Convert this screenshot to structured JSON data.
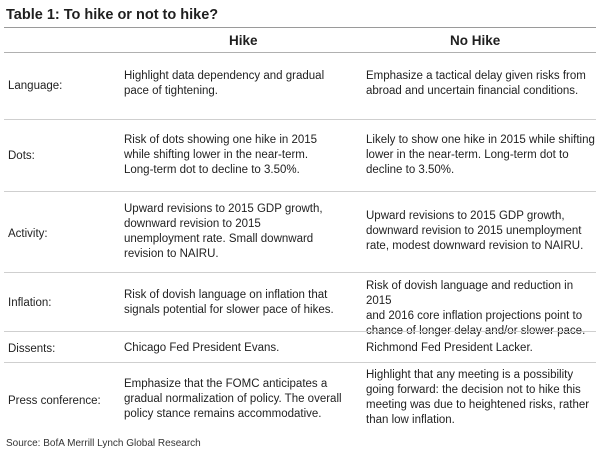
{
  "title": "Table 1: To hike or not to hike?",
  "columns": {
    "hike": "Hike",
    "no_hike": "No Hike"
  },
  "rows": [
    {
      "label": "Language:",
      "hike": "Highlight data dependency and gradual\npace of tightening.",
      "no_hike": "Emphasize a tactical delay given risks from\nabroad and uncertain financial conditions."
    },
    {
      "label": "Dots:",
      "hike": "Risk of dots showing one hike in 2015\nwhile shifting lower in the near-term.\nLong-term dot to decline to 3.50%.",
      "no_hike": "Likely to show one hike in 2015 while shifting\nlower in the near-term. Long-term dot to\ndecline to 3.50%."
    },
    {
      "label": "Activity:",
      "hike": "Upward revisions to 2015 GDP growth,\ndownward revision to 2015\nunemployment rate. Small downward\nrevision to NAIRU.",
      "no_hike": "Upward revisions to 2015 GDP growth,\ndownward revision to 2015 unemployment\nrate, modest downward revision to NAIRU."
    },
    {
      "label": "Inflation:",
      "hike": "Risk of dovish language on inflation that\nsignals potential for slower pace of hikes.",
      "no_hike": "Risk of dovish language and reduction in 2015\nand 2016 core inflation projections point to\nchance of longer delay and/or slower pace."
    },
    {
      "label": "Dissents:",
      "hike": "Chicago Fed President Evans.",
      "no_hike": "Richmond Fed President Lacker."
    },
    {
      "label": "Press conference:",
      "hike": "Emphasize that the FOMC anticipates a\ngradual normalization of policy. The overall\npolicy stance remains accommodative.",
      "no_hike": "Highlight that any meeting is a possibility\ngoing forward: the decision not to hike this\nmeeting was due to heightened risks, rather\nthan low inflation."
    }
  ],
  "source": "Source: BofA Merrill Lynch Global Research"
}
